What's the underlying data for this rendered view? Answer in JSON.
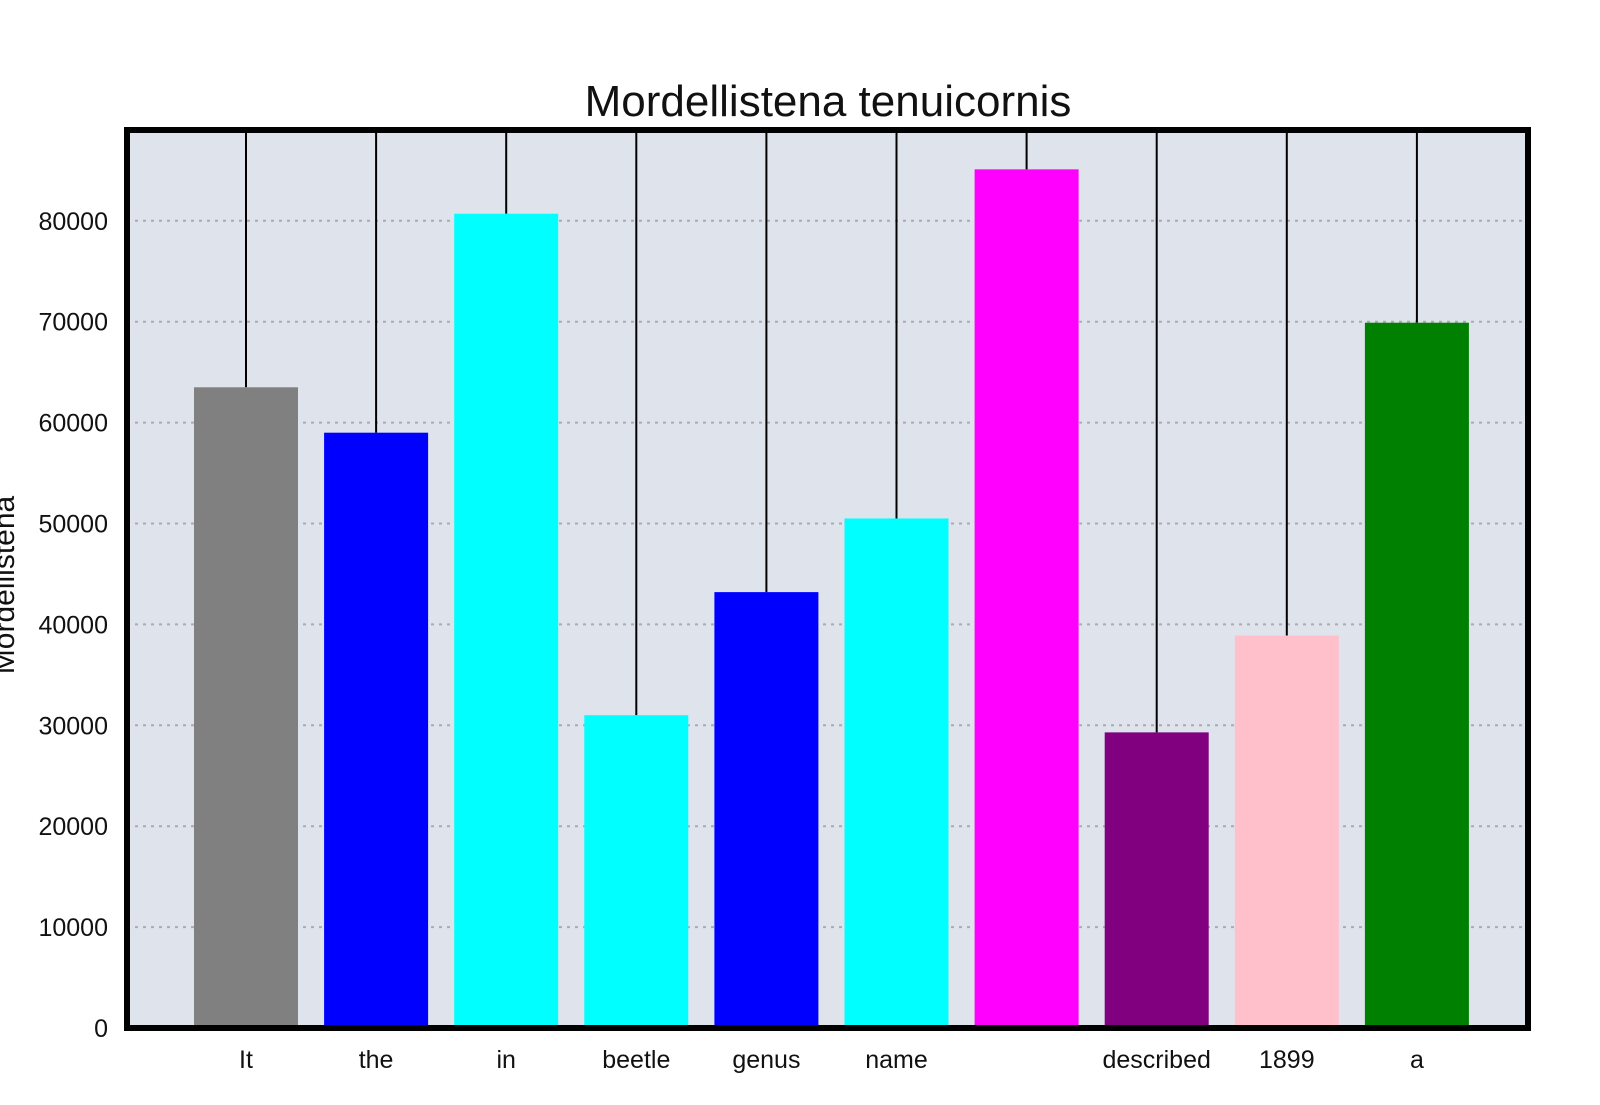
{
  "chart_data": {
    "type": "bar",
    "title": "Mordellistena tenuicornis",
    "xlabel": "",
    "ylabel": "Mordellistena",
    "categories": [
      "It",
      "the",
      "in",
      "beetle",
      "genus",
      "name",
      "",
      "described",
      "1899",
      "a"
    ],
    "values": [
      63500,
      59000,
      80700,
      31000,
      43200,
      50500,
      85100,
      29300,
      38900,
      69900
    ],
    "colors": [
      "#808080",
      "#0000ff",
      "#00ffff",
      "#00ffff",
      "#0000ff",
      "#00ffff",
      "#ff00ff",
      "#800080",
      "#ffc0cb",
      "#008000"
    ],
    "ylim": [
      0,
      89000
    ],
    "yticks": [
      0,
      10000,
      20000,
      30000,
      40000,
      50000,
      60000,
      70000,
      80000
    ],
    "grid": true,
    "plot_background": "#dfe3ec",
    "legend": "none"
  }
}
